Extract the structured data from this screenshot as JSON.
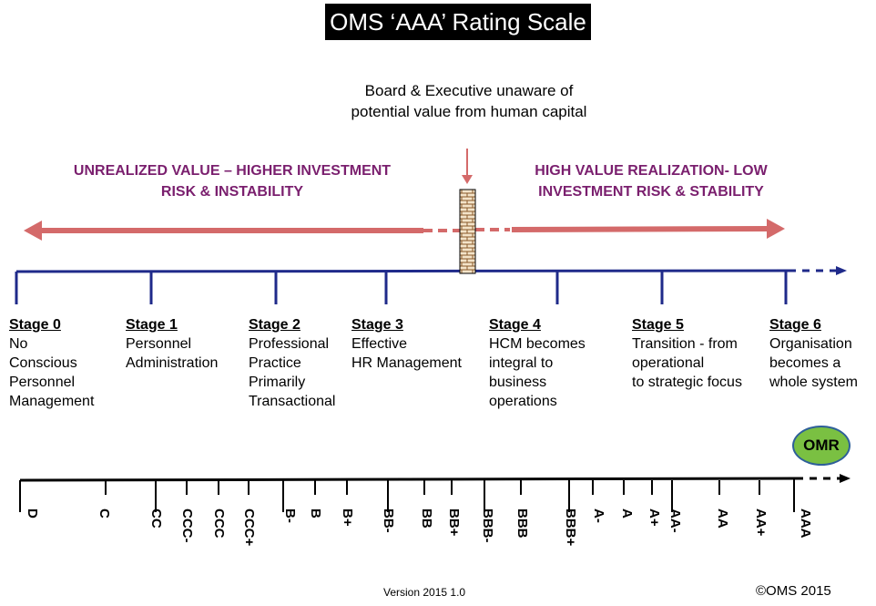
{
  "title": "OMS ‘AAA’ Rating Scale",
  "note": "Board & Executive unaware of potential value from human capital",
  "banner_left": "UNREALIZED VALUE – HIGHER INVESTMENT RISK & INSTABILITY",
  "banner_right": "HIGH VALUE REALIZATION- LOW INVESTMENT RISK & STABILITY",
  "stages": [
    {
      "heading": "Stage 0",
      "text": "No\nConscious\nPersonnel\nManagement"
    },
    {
      "heading": "Stage 1",
      "text": "Personnel\nAdministration"
    },
    {
      "heading": "Stage 2",
      "text": "Professional\nPractice\nPrimarily\nTransactional"
    },
    {
      "heading": "Stage 3",
      "text": "Effective\nHR Management"
    },
    {
      "heading": "Stage 4",
      "text": "HCM becomes\nintegral to\nbusiness\noperations"
    },
    {
      "heading": "Stage 5",
      "text": "Transition - from\noperational\nto strategic focus"
    },
    {
      "heading": "Stage 6",
      "text": "Organisation\nbecomes a\nwhole system"
    }
  ],
  "ratings": [
    "D",
    "C",
    "CC",
    "CCC-",
    "CCC",
    "CCC+",
    "B-",
    "B",
    "B+",
    "BB-",
    "BB",
    "BB+",
    "BBB-",
    "BBB",
    "BBB+",
    "A-",
    "A",
    "A+",
    "AA-",
    "AA",
    "AA+",
    "AAA"
  ],
  "omr_label": "OMR",
  "version": "Version 2015 1.0",
  "copyright": "©OMS 2015",
  "colors": {
    "arrow": "#d46a6a",
    "axis_blue": "#1f2a8a",
    "banner": "#7a1f6e",
    "omr_fill": "#7ac042",
    "omr_border": "#2e5f99",
    "wall": "#f3e3c8"
  }
}
